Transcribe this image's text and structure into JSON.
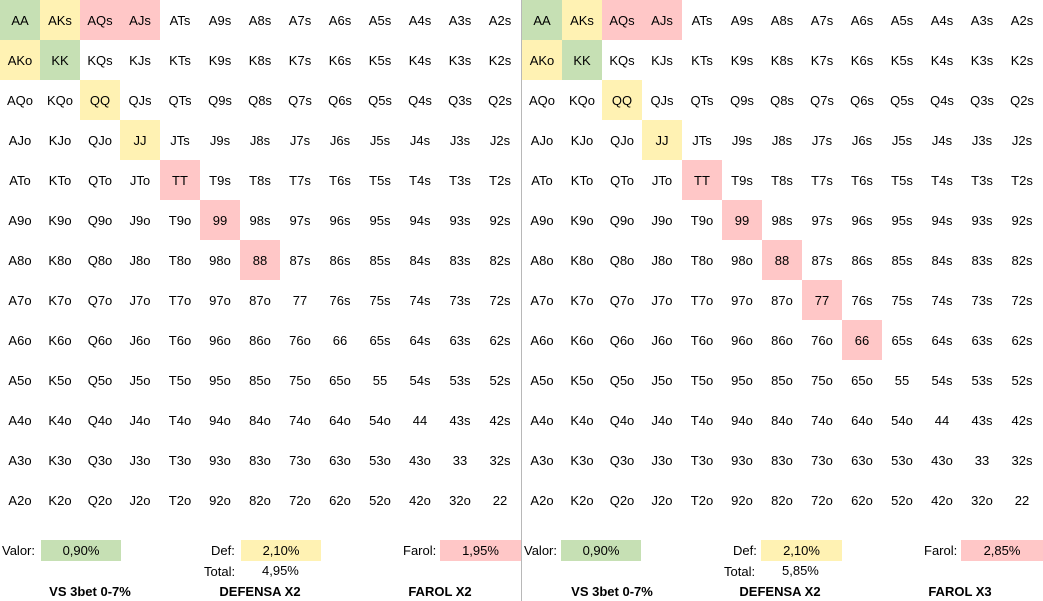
{
  "colors": {
    "green": "#c6e0b4",
    "yellow": "#fff2b3",
    "red": "#ffc7c7"
  },
  "panels": [
    {
      "highlights": {
        "green": [
          "AA",
          "KK"
        ],
        "yellow": [
          "AKs",
          "AKo",
          "QQ",
          "JJ"
        ],
        "red": [
          "AQs",
          "AJs",
          "TT",
          "99",
          "88"
        ]
      },
      "valor_label": "Valor:",
      "valor_value": "0,90%",
      "def_label": "Def:",
      "def_value": "2,10%",
      "farol_label": "Farol:",
      "farol_value": "1,95%",
      "total_label": "Total:",
      "total_value": "4,95%",
      "titles": [
        "VS 3bet 0-7%",
        "DEFENSA X2",
        "FAROL X2"
      ]
    },
    {
      "highlights": {
        "green": [
          "AA",
          "KK"
        ],
        "yellow": [
          "AKs",
          "AKo",
          "QQ",
          "JJ"
        ],
        "red": [
          "AQs",
          "AJs",
          "TT",
          "99",
          "88",
          "77",
          "66"
        ]
      },
      "valor_label": "Valor:",
      "valor_value": "0,90%",
      "def_label": "Def:",
      "def_value": "2,10%",
      "farol_label": "Farol:",
      "farol_value": "2,85%",
      "total_label": "Total:",
      "total_value": "5,85%",
      "titles": [
        "VS 3bet 0-7%",
        "DEFENSA X2",
        "FAROL X3"
      ]
    }
  ],
  "grid": [
    [
      "AA",
      "AKs",
      "AQs",
      "AJs",
      "ATs",
      "A9s",
      "A8s",
      "A7s",
      "A6s",
      "A5s",
      "A4s",
      "A3s",
      "A2s"
    ],
    [
      "AKo",
      "KK",
      "KQs",
      "KJs",
      "KTs",
      "K9s",
      "K8s",
      "K7s",
      "K6s",
      "K5s",
      "K4s",
      "K3s",
      "K2s"
    ],
    [
      "AQo",
      "KQo",
      "QQ",
      "QJs",
      "QTs",
      "Q9s",
      "Q8s",
      "Q7s",
      "Q6s",
      "Q5s",
      "Q4s",
      "Q3s",
      "Q2s"
    ],
    [
      "AJo",
      "KJo",
      "QJo",
      "JJ",
      "JTs",
      "J9s",
      "J8s",
      "J7s",
      "J6s",
      "J5s",
      "J4s",
      "J3s",
      "J2s"
    ],
    [
      "ATo",
      "KTo",
      "QTo",
      "JTo",
      "TT",
      "T9s",
      "T8s",
      "T7s",
      "T6s",
      "T5s",
      "T4s",
      "T3s",
      "T2s"
    ],
    [
      "A9o",
      "K9o",
      "Q9o",
      "J9o",
      "T9o",
      "99",
      "98s",
      "97s",
      "96s",
      "95s",
      "94s",
      "93s",
      "92s"
    ],
    [
      "A8o",
      "K8o",
      "Q8o",
      "J8o",
      "T8o",
      "98o",
      "88",
      "87s",
      "86s",
      "85s",
      "84s",
      "83s",
      "82s"
    ],
    [
      "A7o",
      "K7o",
      "Q7o",
      "J7o",
      "T7o",
      "97o",
      "87o",
      "77",
      "76s",
      "75s",
      "74s",
      "73s",
      "72s"
    ],
    [
      "A6o",
      "K6o",
      "Q6o",
      "J6o",
      "T6o",
      "96o",
      "86o",
      "76o",
      "66",
      "65s",
      "64s",
      "63s",
      "62s"
    ],
    [
      "A5o",
      "K5o",
      "Q5o",
      "J5o",
      "T5o",
      "95o",
      "85o",
      "75o",
      "65o",
      "55",
      "54s",
      "53s",
      "52s"
    ],
    [
      "A4o",
      "K4o",
      "Q4o",
      "J4o",
      "T4o",
      "94o",
      "84o",
      "74o",
      "64o",
      "54o",
      "44",
      "43s",
      "42s"
    ],
    [
      "A3o",
      "K3o",
      "Q3o",
      "J3o",
      "T3o",
      "93o",
      "83o",
      "73o",
      "63o",
      "53o",
      "43o",
      "33",
      "32s"
    ],
    [
      "A2o",
      "K2o",
      "Q2o",
      "J2o",
      "T2o",
      "92o",
      "82o",
      "72o",
      "62o",
      "52o",
      "42o",
      "32o",
      "22"
    ]
  ]
}
